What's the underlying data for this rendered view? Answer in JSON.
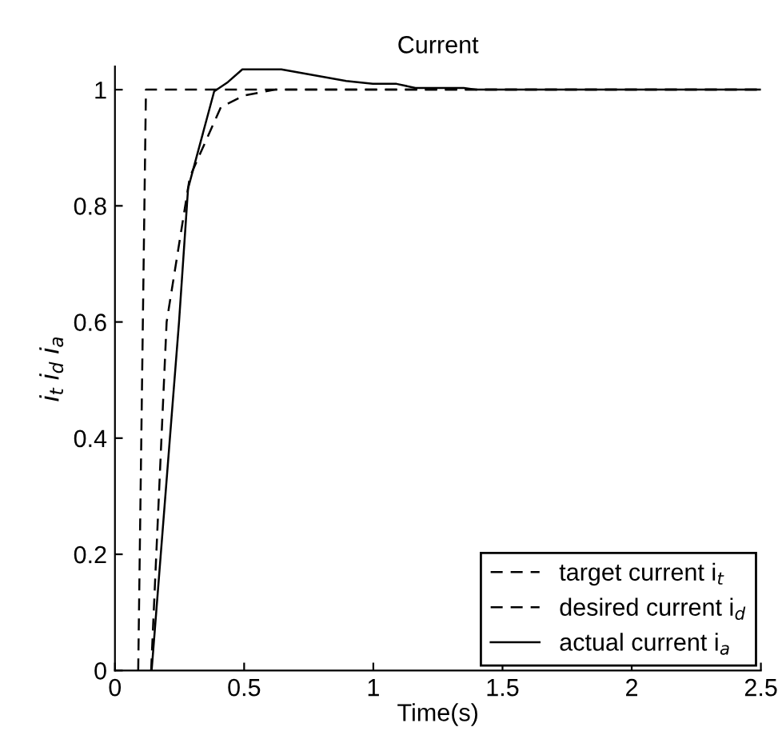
{
  "chart_data": {
    "type": "line",
    "title": "Current",
    "xlabel": "Time(s)",
    "ylabel": "i$_{t}$ i$_{d}$ i$_{a}$",
    "xlim": [
      0,
      2.5
    ],
    "xticks": [
      0,
      0.5,
      1,
      1.5,
      2,
      2.5
    ],
    "ylim": [
      0,
      1.04
    ],
    "yticks": [
      0,
      0.2,
      0.4,
      0.6,
      0.8,
      1
    ],
    "grid": false,
    "legend": "bottom right",
    "marker": "none",
    "series": [
      {
        "name": "target current i$_{t}$",
        "color": "#000000",
        "line_style": "dashed",
        "x": [
          0.09,
          0.12,
          2.5
        ],
        "values": [
          0,
          1,
          1
        ]
      },
      {
        "name": "desired current i$_{d}$",
        "color": "#000000",
        "line_style": "dashed",
        "x": [
          0.14,
          0.2,
          0.29,
          0.41,
          0.5,
          0.62,
          2.5
        ],
        "values": [
          0,
          0.6,
          0.85,
          0.97,
          0.99,
          1.0,
          1.0
        ]
      },
      {
        "name": "actual current i$_{a}$",
        "color": "#000000",
        "line_style": "solid",
        "x": [
          0.142,
          0.248,
          0.283,
          0.384,
          0.437,
          0.493,
          0.644,
          0.895,
          0.998,
          1.09,
          1.163,
          1.35,
          1.4,
          2.5
        ],
        "values": [
          0,
          0.6,
          0.83,
          0.997,
          1.013,
          1.035,
          1.035,
          1.015,
          1.01,
          1.01,
          1.003,
          1.003,
          1.0,
          1.0
        ]
      }
    ]
  }
}
